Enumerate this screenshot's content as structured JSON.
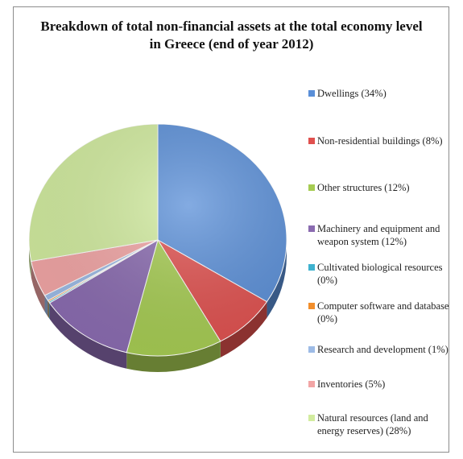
{
  "chart_data": {
    "type": "pie",
    "title_lines": [
      "Breakdown of total non-financial assets at the total economy level",
      "in Greece (end of year 2012)"
    ],
    "legend_position": "right",
    "style": "3d-tilted",
    "slices": [
      {
        "label": "Dwellings (34%)",
        "value": 34,
        "color": "#5a8fd8"
      },
      {
        "label": "Non-residential buildings (8%)",
        "value": 8,
        "color": "#e0504e"
      },
      {
        "label": "Other structures (12%)",
        "value": 12,
        "color": "#a6cc52"
      },
      {
        "label": "Machinery and equipment and weapon system (12%)",
        "value": 12,
        "color": "#8a6bb0"
      },
      {
        "label": "Cultivated biological resources (0%)",
        "value": 0.2,
        "color": "#3fb2cf"
      },
      {
        "label": "Computer software and database (0%)",
        "value": 0.2,
        "color": "#f28e2b"
      },
      {
        "label": "Research and development (1%)",
        "value": 0.8,
        "color": "#9dbbe6"
      },
      {
        "label": "Inventories (5%)",
        "value": 5,
        "color": "#f2a5a5"
      },
      {
        "label": "Natural resources (land and energy reserves) (28%)",
        "value": 28,
        "color": "#d2ec9f"
      }
    ]
  }
}
